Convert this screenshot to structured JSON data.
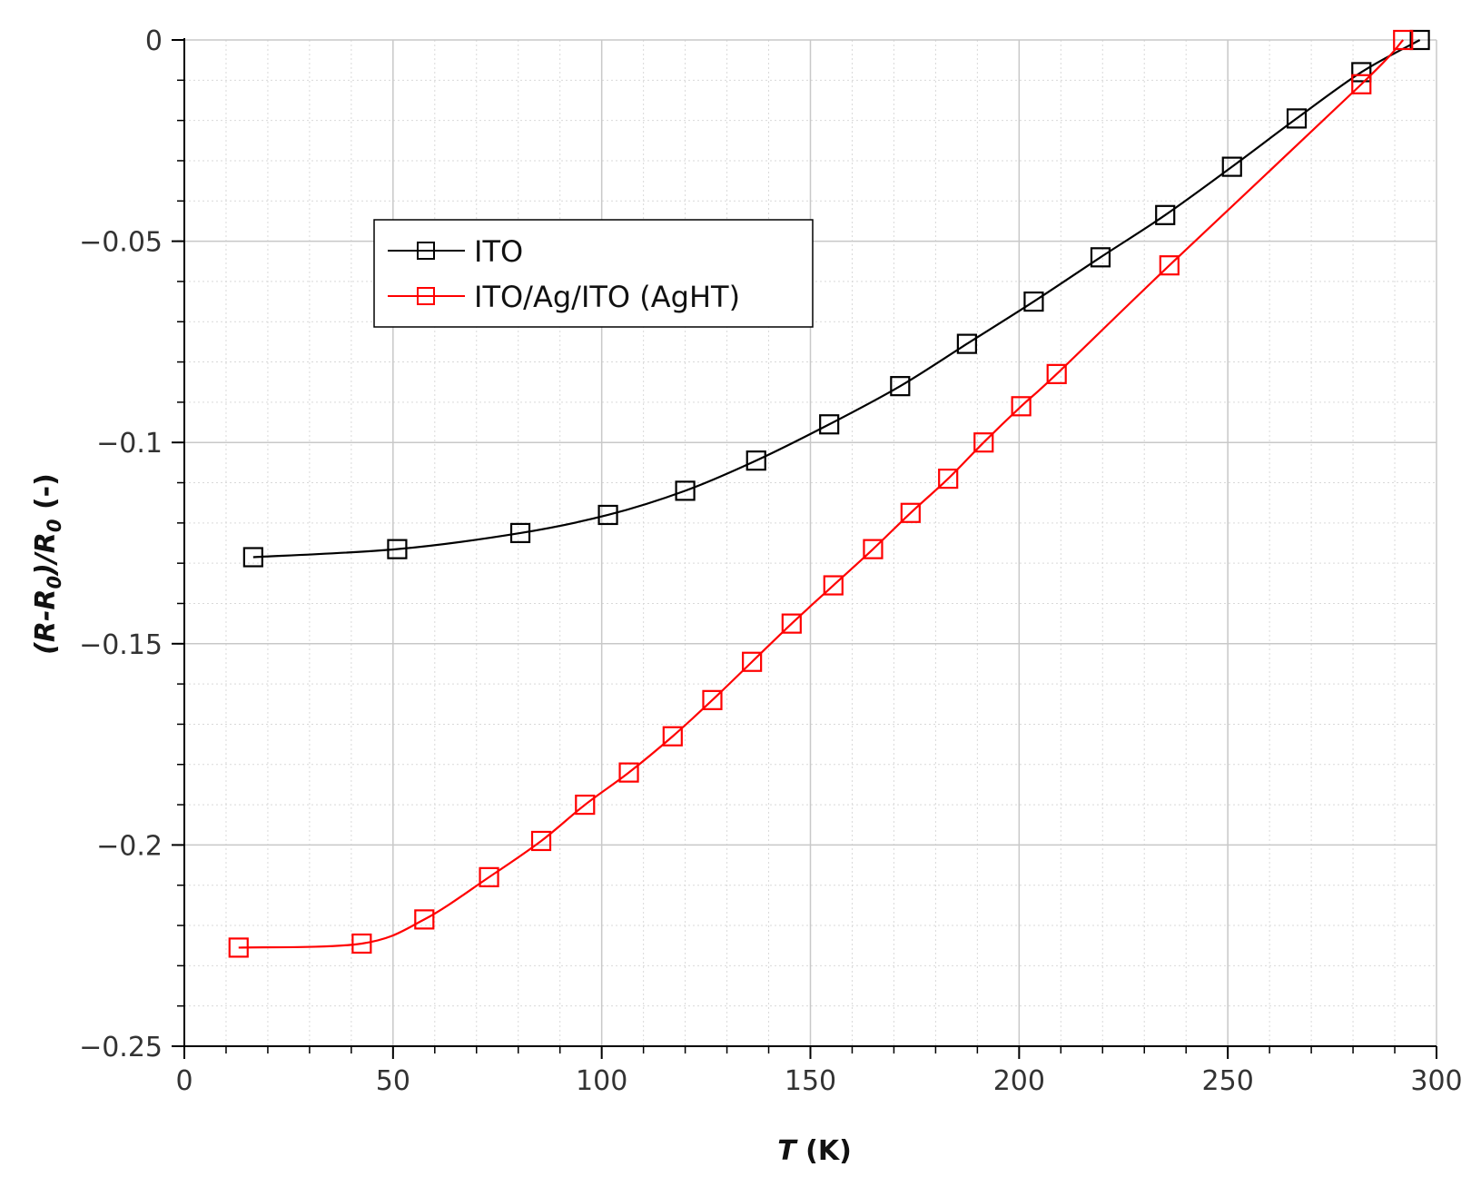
{
  "chart_data": {
    "type": "line",
    "xlabel": {
      "symbol": "T",
      "unit": " (K)"
    },
    "ylabel": {
      "text": "(R-R",
      "sub1": "0",
      "mid": ")/R",
      "sub2": "0",
      "unit": " (-)"
    },
    "xlim": [
      0,
      300
    ],
    "ylim": [
      -0.25,
      0
    ],
    "x_ticks": [
      0,
      50,
      100,
      150,
      200,
      250,
      300
    ],
    "x_tick_labels": [
      "0",
      "50",
      "100",
      "150",
      "200",
      "250",
      "300"
    ],
    "y_ticks": [
      0,
      -0.05,
      -0.1,
      -0.15,
      -0.2,
      -0.25
    ],
    "y_tick_labels": [
      "0",
      "−0.05",
      "−0.1",
      "−0.15",
      "−0.2",
      "−0.25"
    ],
    "x_minor_step": 10,
    "y_minor_step": 0.01,
    "grid": true,
    "legend_position": "upper-left",
    "series": [
      {
        "name": "ITO",
        "color": "#000000",
        "marker": "open-square",
        "x": [
          16.5,
          51,
          80.5,
          101.5,
          120,
          137,
          154.5,
          171.5,
          187.5,
          203.5,
          219.5,
          235,
          251,
          266.5,
          282,
          296
        ],
        "y": [
          -0.1285,
          -0.1265,
          -0.1225,
          -0.118,
          -0.112,
          -0.1045,
          -0.0955,
          -0.086,
          -0.0755,
          -0.065,
          -0.054,
          -0.0435,
          -0.0315,
          -0.0195,
          -0.008,
          0
        ]
      },
      {
        "name": "ITO/Ag/ITO (AgHT)",
        "color": "#ff0000",
        "marker": "open-square",
        "x": [
          13,
          42.5,
          57.5,
          73,
          85.5,
          96,
          106.5,
          117,
          126.5,
          136,
          145.5,
          155.5,
          165,
          174,
          183,
          191.5,
          200.5,
          209,
          236,
          282,
          292
        ],
        "y": [
          -0.2255,
          -0.2245,
          -0.2185,
          -0.208,
          -0.199,
          -0.19,
          -0.182,
          -0.173,
          -0.164,
          -0.1545,
          -0.145,
          -0.1355,
          -0.1265,
          -0.1175,
          -0.109,
          -0.1,
          -0.091,
          -0.083,
          -0.056,
          -0.011,
          0
        ]
      }
    ]
  }
}
